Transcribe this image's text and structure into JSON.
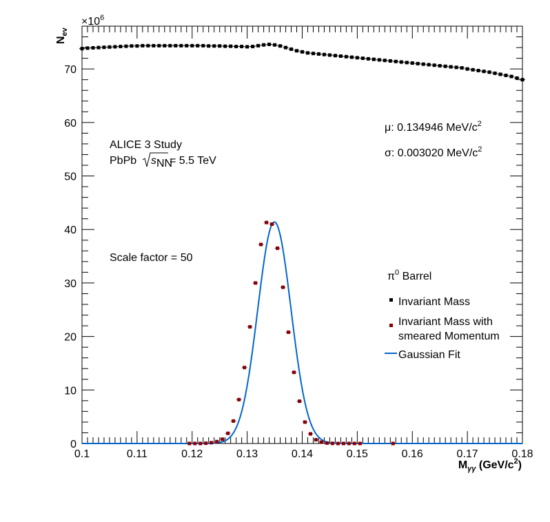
{
  "chart_data": {
    "type": "scatter",
    "xlabel": "M",
    "xlabel_sub": "γγ",
    "xlabel_unit": "(GeV/c",
    "xlabel_unit_sup": "2",
    "xlabel_unit_close": ")",
    "ylabel": "N",
    "ylabel_sub": "ev",
    "y_multiplier": "×10",
    "y_multiplier_exp": "6",
    "xlim": [
      0.1,
      0.18
    ],
    "ylim": [
      0,
      78
    ],
    "x_tick_labels": [
      "0.1",
      "0.11",
      "0.12",
      "0.13",
      "0.14",
      "0.15",
      "0.16",
      "0.17",
      "0.18"
    ],
    "y_tick_labels": [
      "0",
      "10",
      "20",
      "30",
      "40",
      "50",
      "60",
      "70"
    ],
    "annotations": {
      "study": "ALICE 3 Study",
      "system_prefix": "PbPb ",
      "sqrt_s": "s",
      "sqrt_sub": "NN",
      "system_suffix": " = 5.5 TeV",
      "scale": "Scale factor = 50",
      "mu_text": "μ: 0.134946 MeV/c",
      "mu_sup": "2",
      "sigma_text": "σ: 0.003020 MeV/c",
      "sigma_sup": "2"
    },
    "legend": {
      "title": "π",
      "title_sup": "0",
      "title_rest": " Barrel",
      "entries": [
        "Invariant Mass",
        "Invariant Mass with",
        "smeared Momentum",
        "Gaussian Fit"
      ]
    },
    "fit": {
      "mu": 0.134946,
      "sigma": 0.00302,
      "amplitude": 41.4
    },
    "colors": {
      "background_series": "#000000",
      "smeared_series": "#8b0000",
      "fit_line": "#0066cc"
    },
    "series": [
      {
        "name": "Invariant Mass",
        "x": [
          0.1,
          0.101,
          0.102,
          0.103,
          0.104,
          0.105,
          0.106,
          0.107,
          0.108,
          0.109,
          0.11,
          0.111,
          0.112,
          0.113,
          0.114,
          0.115,
          0.116,
          0.117,
          0.118,
          0.119,
          0.12,
          0.121,
          0.122,
          0.123,
          0.124,
          0.125,
          0.126,
          0.127,
          0.128,
          0.129,
          0.13,
          0.131,
          0.132,
          0.133,
          0.134,
          0.135,
          0.136,
          0.137,
          0.138,
          0.139,
          0.14,
          0.141,
          0.142,
          0.143,
          0.144,
          0.145,
          0.146,
          0.147,
          0.148,
          0.149,
          0.15,
          0.151,
          0.152,
          0.153,
          0.154,
          0.155,
          0.156,
          0.157,
          0.158,
          0.159,
          0.16,
          0.161,
          0.162,
          0.163,
          0.164,
          0.165,
          0.166,
          0.167,
          0.168,
          0.169,
          0.17,
          0.171,
          0.172,
          0.173,
          0.174,
          0.175,
          0.176,
          0.177,
          0.178,
          0.179,
          0.18
        ],
        "y": [
          73.8,
          73.9,
          73.95,
          74.0,
          74.05,
          74.1,
          74.15,
          74.2,
          74.25,
          74.3,
          74.3,
          74.35,
          74.35,
          74.35,
          74.35,
          74.35,
          74.35,
          74.35,
          74.35,
          74.35,
          74.35,
          74.35,
          74.35,
          74.3,
          74.3,
          74.3,
          74.25,
          74.25,
          74.2,
          74.2,
          74.15,
          74.2,
          74.35,
          74.5,
          74.6,
          74.5,
          74.3,
          74.0,
          73.7,
          73.4,
          73.2,
          73.0,
          72.9,
          72.8,
          72.7,
          72.6,
          72.5,
          72.4,
          72.3,
          72.2,
          72.1,
          72.0,
          71.9,
          71.8,
          71.7,
          71.6,
          71.5,
          71.4,
          71.3,
          71.2,
          71.1,
          71.0,
          70.9,
          70.8,
          70.7,
          70.6,
          70.5,
          70.4,
          70.3,
          70.2,
          70.0,
          69.85,
          69.7,
          69.55,
          69.4,
          69.2,
          69.0,
          68.8,
          68.6,
          68.3,
          68.0
        ]
      },
      {
        "name": "Invariant Mass with smeared Momentum",
        "x": [
          0.1195,
          0.1205,
          0.1215,
          0.1225,
          0.1235,
          0.1245,
          0.1255,
          0.1265,
          0.1275,
          0.1285,
          0.1295,
          0.1305,
          0.1315,
          0.1325,
          0.1335,
          0.1345,
          0.1355,
          0.1365,
          0.1375,
          0.1385,
          0.1395,
          0.1405,
          0.1415,
          0.1425,
          0.1435,
          0.1445,
          0.1455,
          0.1465,
          0.1475,
          0.1485,
          0.1495,
          0.1505,
          0.1565
        ],
        "y": [
          0.0,
          0.0,
          0.0,
          0.05,
          0.15,
          0.35,
          0.8,
          1.9,
          4.2,
          8.2,
          14.2,
          21.8,
          30.0,
          37.2,
          41.3,
          41.0,
          36.5,
          29.2,
          20.8,
          13.3,
          7.9,
          4.0,
          1.8,
          0.7,
          0.25,
          0.08,
          0.02,
          0.0,
          0.0,
          0.0,
          0.0,
          0.0,
          0.0
        ]
      }
    ]
  }
}
